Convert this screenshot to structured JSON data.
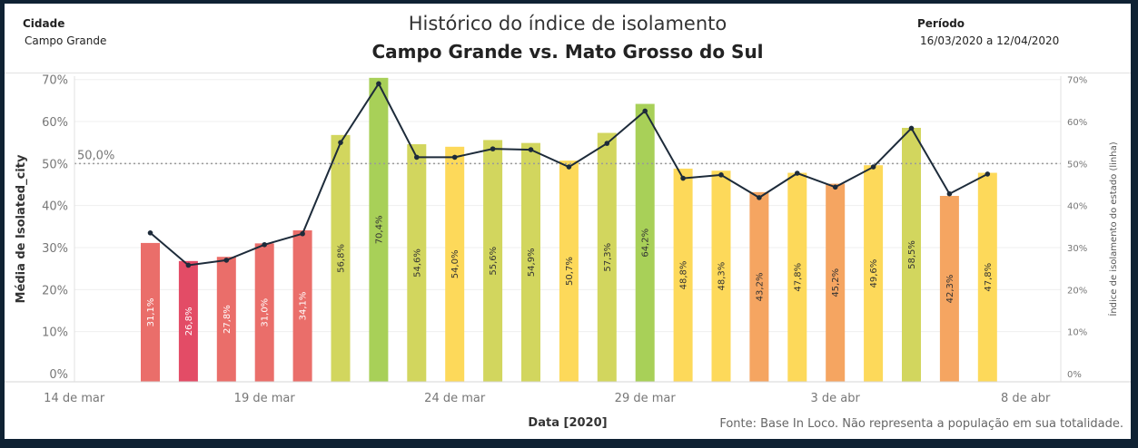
{
  "header": {
    "city_label": "Cidade",
    "city_value": "Campo Grande",
    "period_label": "Período",
    "period_value": "16/03/2020 a 12/04/2020",
    "title": "Histórico do índice de isolamento",
    "subtitle": "Campo Grande vs. Mato Grosso do Sul"
  },
  "footer": {
    "source": "Fonte: Base In Loco. Não representa a população em sua totalidade."
  },
  "chart_data": {
    "type": "bar",
    "title": "Histórico do índice de isolamento",
    "subtitle": "Campo Grande vs. Mato Grosso do Sul",
    "xlabel": "Data [2020]",
    "ylabel": "Média de Isolated_city",
    "ylabel_right": "Índice de isolamento do estado (linha)",
    "ylim": [
      0,
      72
    ],
    "y_ticks": [
      "0%",
      "10%",
      "20%",
      "30%",
      "40%",
      "50%",
      "60%",
      "70%"
    ],
    "x_ticks": [
      "14 de mar",
      "19 de mar",
      "24 de mar",
      "29 de mar",
      "3 de abr",
      "8 de abr"
    ],
    "reference_line": {
      "value": 50,
      "label": "50,0%"
    },
    "grid": true,
    "categories": [
      "2020-03-16",
      "2020-03-17",
      "2020-03-18",
      "2020-03-19",
      "2020-03-20",
      "2020-03-21",
      "2020-03-22",
      "2020-03-23",
      "2020-03-24",
      "2020-03-25",
      "2020-03-26",
      "2020-03-27",
      "2020-03-28",
      "2020-03-29",
      "2020-03-30",
      "2020-03-31",
      "2020-04-01",
      "2020-04-02",
      "2020-04-03",
      "2020-04-04",
      "2020-04-05",
      "2020-04-06",
      "2020-04-07"
    ],
    "bars": {
      "values": [
        31.1,
        26.8,
        27.8,
        31.0,
        34.1,
        56.8,
        70.4,
        54.6,
        54.0,
        55.6,
        54.9,
        50.7,
        57.3,
        64.2,
        48.8,
        48.3,
        43.2,
        47.8,
        45.2,
        49.6,
        58.5,
        42.3,
        47.8
      ],
      "labels": [
        "31,1%",
        "26,8%",
        "27,8%",
        "31,0%",
        "34,1%",
        "56,8%",
        "70,4%",
        "54,6%",
        "54,0%",
        "55,6%",
        "54,9%",
        "50,7%",
        "57,3%",
        "64,2%",
        "48,8%",
        "48,3%",
        "43,2%",
        "47,8%",
        "45,2%",
        "49,6%",
        "58,5%",
        "42,3%",
        "47,8%"
      ],
      "colors": [
        "#ea6e6a",
        "#e34c66",
        "#ea6e6a",
        "#ea6e6a",
        "#ea6e6a",
        "#d2d65e",
        "#a8d058",
        "#d2d65e",
        "#fdd95a",
        "#d2d65e",
        "#d2d65e",
        "#fdd95a",
        "#d2d65e",
        "#a8d058",
        "#fdd95a",
        "#fdd95a",
        "#f5a561",
        "#fdd95a",
        "#f5a561",
        "#fdd95a",
        "#d2d65e",
        "#f5a561",
        "#fdd95a"
      ],
      "label_colors": [
        "#ffffff",
        "#ffffff",
        "#ffffff",
        "#ffffff",
        "#ffffff",
        "#333333",
        "#333333",
        "#333333",
        "#333333",
        "#333333",
        "#333333",
        "#333333",
        "#333333",
        "#333333",
        "#333333",
        "#333333",
        "#333333",
        "#333333",
        "#333333",
        "#333333",
        "#333333",
        "#333333",
        "#333333"
      ]
    },
    "line": {
      "values": [
        33.5,
        25.8,
        27.0,
        30.7,
        33.3,
        55.0,
        69.0,
        51.5,
        51.5,
        53.5,
        53.3,
        49.2,
        54.8,
        62.5,
        46.5,
        47.3,
        41.9,
        47.7,
        44.4,
        49.2,
        58.4,
        42.8,
        47.5
      ]
    }
  }
}
